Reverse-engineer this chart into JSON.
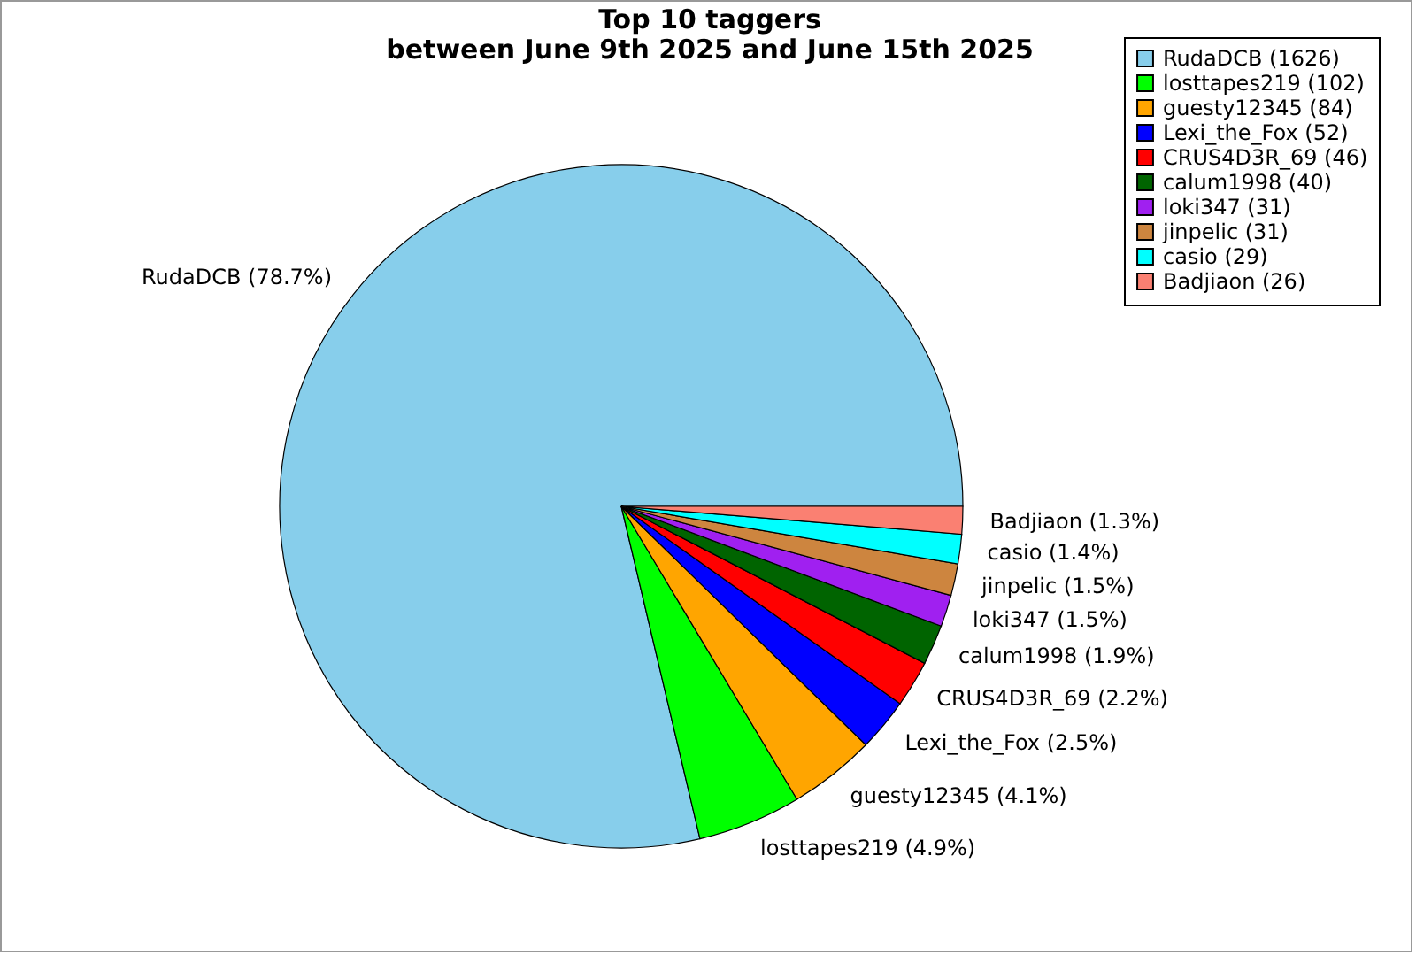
{
  "chart_data": {
    "type": "pie",
    "title": "Top 10 taggers",
    "subtitle": "between June 9th 2025 and June 15th 2025",
    "categories": [
      "RudaDCB (1626)",
      "losttapes219 (102)",
      "guesty12345 (84)",
      "Lexi_the_Fox (52)",
      "CRUS4D3R_69 (46)",
      "calum1998 (40)",
      "loki347 (31)",
      "jinpelic (31)",
      "casio (29)",
      "Badjiaon (26)"
    ],
    "values": [
      78.7,
      4.9,
      4.1,
      2.5,
      2.2,
      1.9,
      1.5,
      1.5,
      1.4,
      1.3
    ],
    "colors": [
      "#87ceeb",
      "#00ff00",
      "#ffa500",
      "#0000ff",
      "#ff0000",
      "#006400",
      "#a020f0",
      "#cd853f",
      "#00ffff",
      "#fa8072"
    ],
    "value_labels": [
      "RudaDCB (78.7%)",
      "losttapes219 (4.9%)",
      "guesty12345 (4.1%)",
      "Lexi_the_Fox (2.5%)",
      "CRUS4D3R_69 (2.2%)",
      "calum1998 (1.9%)",
      "loki347 (1.5%)",
      "jinpelic (1.5%)",
      "casio (1.4%)",
      "Badjiaon (1.3%)"
    ],
    "legend": "top right"
  }
}
